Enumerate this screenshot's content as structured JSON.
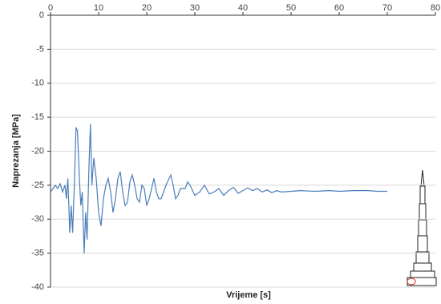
{
  "chart_data": {
    "type": "line",
    "xlabel": "Vrijeme [s]",
    "ylabel": "Naprezanja [MPa]",
    "xlim": [
      0,
      80
    ],
    "xticks": [
      0,
      10,
      20,
      30,
      40,
      50,
      60,
      70,
      80
    ],
    "ylim": [
      -40,
      0
    ],
    "yticks": [
      0,
      -5,
      -10,
      -15,
      -20,
      -25,
      -30,
      -35,
      -40
    ],
    "grid": true,
    "x": [
      0,
      0.5,
      1,
      1.5,
      2,
      2.5,
      3,
      3.3,
      3.6,
      4,
      4.3,
      4.6,
      5,
      5.3,
      5.6,
      6,
      6.3,
      6.6,
      7,
      7.3,
      7.6,
      8,
      8.3,
      8.6,
      9,
      9.5,
      10,
      10.5,
      11,
      11.5,
      12,
      12.5,
      13,
      13.5,
      14,
      14.5,
      15,
      15.5,
      16,
      16.5,
      17,
      17.5,
      18,
      18.5,
      19,
      19.5,
      20,
      20.5,
      21,
      21.5,
      22,
      22.5,
      23,
      23.5,
      24,
      25,
      25.5,
      26,
      26.5,
      27,
      28,
      28.5,
      29,
      30,
      31,
      32,
      33,
      34,
      35,
      36,
      37,
      38,
      39,
      40,
      41,
      42,
      43,
      44,
      45,
      46,
      47,
      48,
      50,
      52,
      55,
      58,
      60,
      63,
      66,
      68,
      70
    ],
    "series": [
      {
        "color": "#4a7ebb",
        "values": [
          -26,
          -25.5,
          -25,
          -25.5,
          -24.8,
          -26,
          -25,
          -27,
          -24,
          -32,
          -28,
          -32,
          -24,
          -16.5,
          -17,
          -24,
          -28,
          -26,
          -35,
          -29,
          -33,
          -22,
          -16,
          -25,
          -21,
          -24,
          -29,
          -31,
          -27,
          -25,
          -24,
          -26,
          -29,
          -27,
          -24,
          -23,
          -26,
          -28,
          -27.5,
          -24.5,
          -23.5,
          -25,
          -27,
          -27.5,
          -25,
          -25.5,
          -28,
          -27,
          -25.5,
          -24,
          -26,
          -27,
          -27,
          -26,
          -25,
          -23.5,
          -25,
          -27,
          -26.5,
          -25.5,
          -25.5,
          -24.5,
          -25,
          -26.5,
          -26,
          -25,
          -26.3,
          -26,
          -25.5,
          -26.5,
          -25.8,
          -25.3,
          -26.2,
          -25.8,
          -25.4,
          -25.8,
          -25.5,
          -26,
          -25.7,
          -26.1,
          -25.8,
          -26,
          -25.9,
          -25.8,
          -25.9,
          -25.8,
          -25.9,
          -25.8,
          -25.8,
          -25.9,
          -25.9
        ]
      }
    ]
  }
}
